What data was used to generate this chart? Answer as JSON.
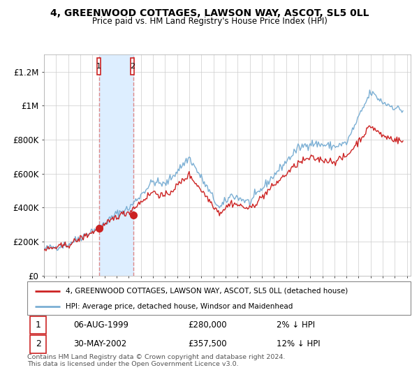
{
  "title": "4, GREENWOOD COTTAGES, LAWSON WAY, ASCOT, SL5 0LL",
  "subtitle": "Price paid vs. HM Land Registry's House Price Index (HPI)",
  "legend_line1": "4, GREENWOOD COTTAGES, LAWSON WAY, ASCOT, SL5 0LL (detached house)",
  "legend_line2": "HPI: Average price, detached house, Windsor and Maidenhead",
  "transaction1_label": "1",
  "transaction1_date": "06-AUG-1999",
  "transaction1_price": "£280,000",
  "transaction1_hpi": "2% ↓ HPI",
  "transaction2_label": "2",
  "transaction2_date": "30-MAY-2002",
  "transaction2_price": "£357,500",
  "transaction2_hpi": "12% ↓ HPI",
  "footer": "Contains HM Land Registry data © Crown copyright and database right 2024.\nThis data is licensed under the Open Government Licence v3.0.",
  "background_color": "#ffffff",
  "grid_color": "#cccccc",
  "hpi_color": "#7bafd4",
  "price_color": "#cc2222",
  "marker_color": "#cc2222",
  "transaction_box_color": "#cc2222",
  "shade_color": "#ddeeff",
  "dashed_color": "#dd8888",
  "ylim": [
    0,
    1300000
  ],
  "yticks": [
    0,
    200000,
    400000,
    600000,
    800000,
    1000000,
    1200000
  ],
  "ytick_labels": [
    "£0",
    "£200K",
    "£400K",
    "£600K",
    "£800K",
    "£1M",
    "£1.2M"
  ],
  "transaction1_x": 1999.58,
  "transaction1_y": 280000,
  "transaction2_x": 2002.37,
  "transaction2_y": 357500,
  "xlim": [
    1995,
    2025.3
  ],
  "xtick_start": 1995,
  "xtick_end": 2025
}
